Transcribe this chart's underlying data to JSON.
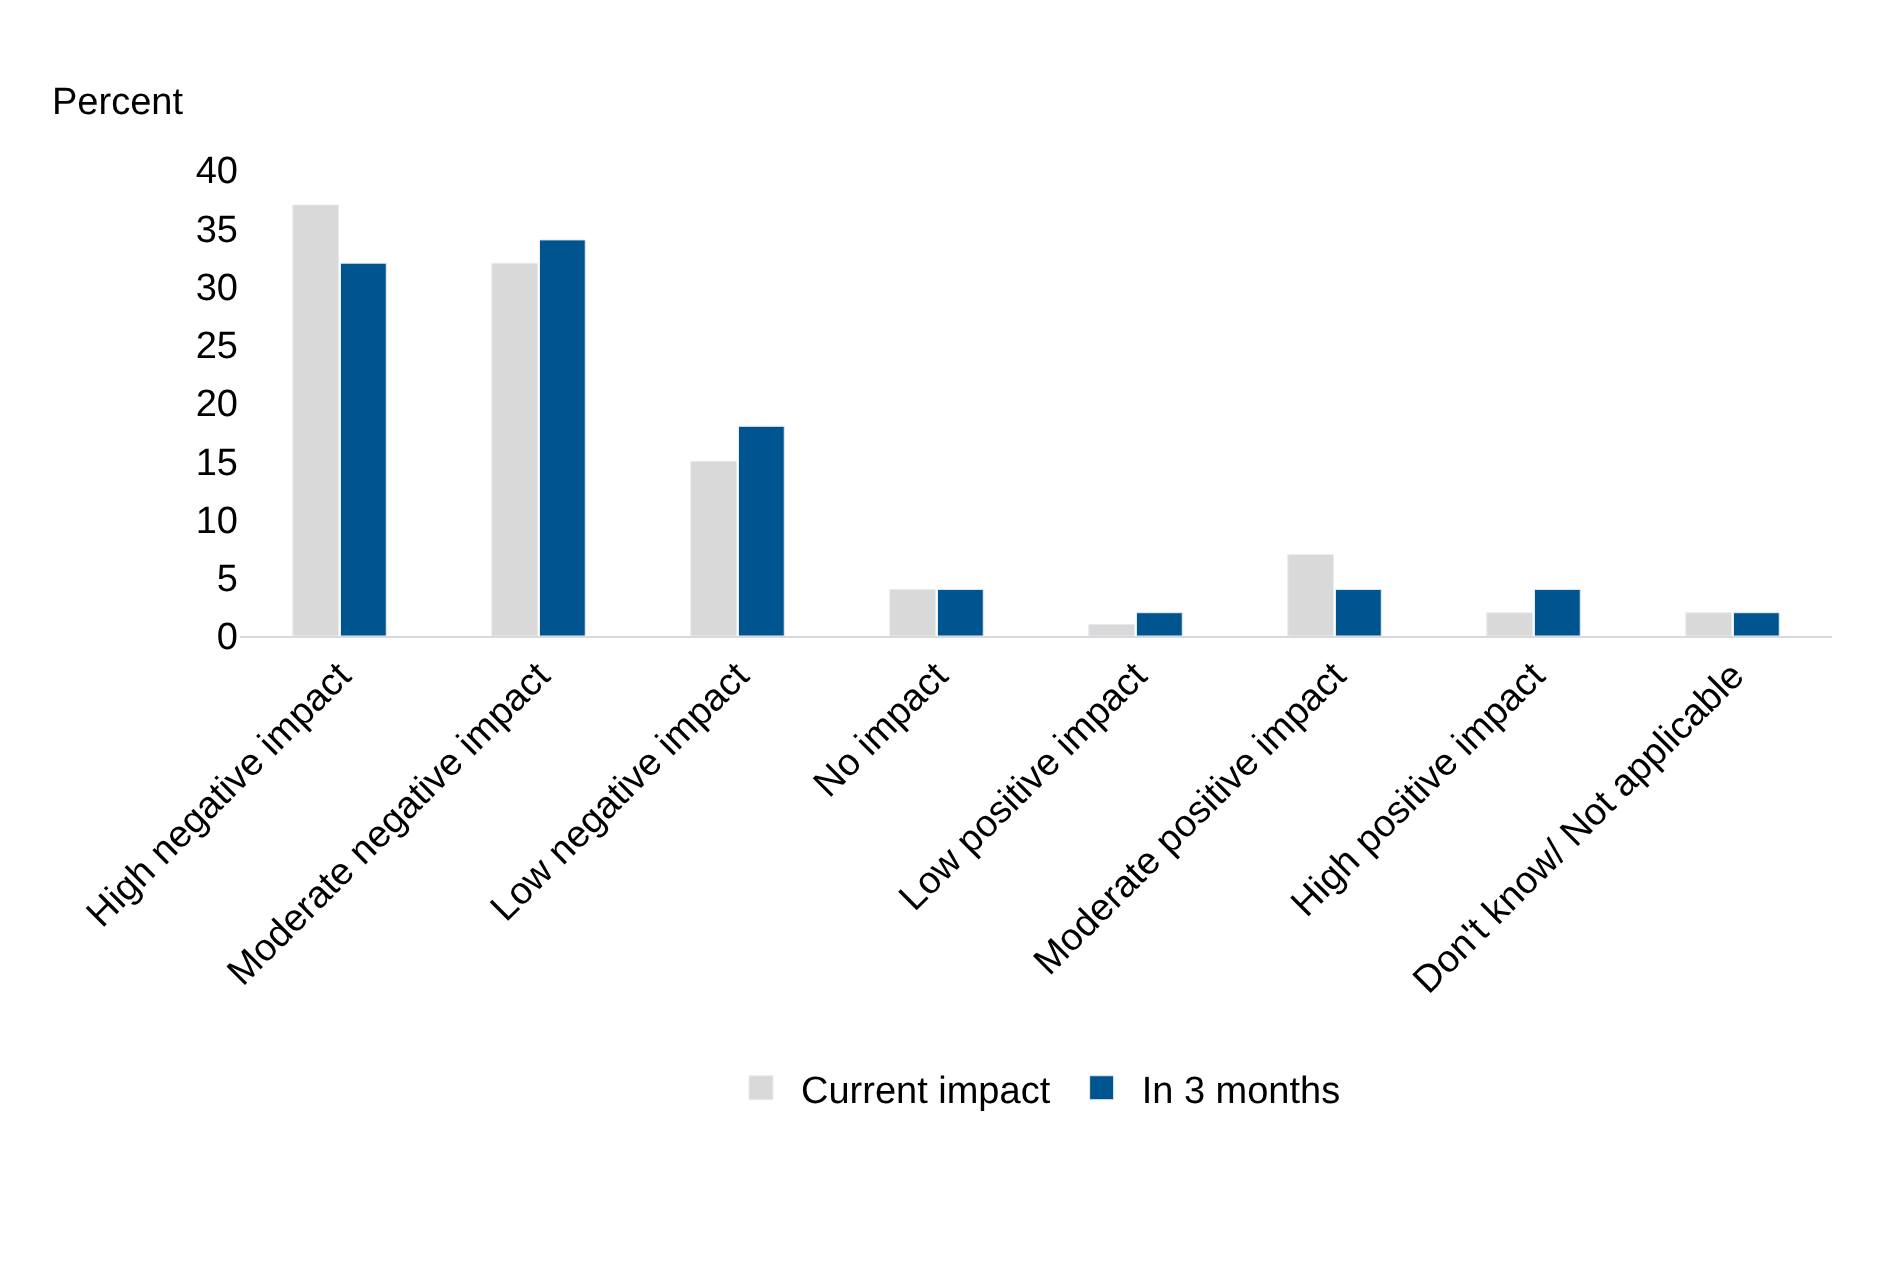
{
  "chart_data": {
    "type": "bar",
    "ylabel": "Percent",
    "categories": [
      "High negative impact",
      "Moderate negative impact",
      "Low negative impact",
      "No impact",
      "Low positive impact",
      "Moderate positive impact",
      "High positive impact",
      "Don't know/ Not applicable"
    ],
    "series": [
      {
        "name": "Current impact",
        "color": "#d9d9d9",
        "values": [
          37,
          32,
          15,
          4,
          1,
          7,
          2,
          2
        ]
      },
      {
        "name": "In 3 months",
        "color": "#00548f",
        "values": [
          32,
          34,
          18,
          4,
          2,
          4,
          4,
          2
        ]
      }
    ],
    "ylim": [
      0,
      40
    ],
    "yticks": [
      0,
      5,
      10,
      15,
      20,
      25,
      30,
      35,
      40
    ],
    "grid": false,
    "legend": "bottom"
  }
}
